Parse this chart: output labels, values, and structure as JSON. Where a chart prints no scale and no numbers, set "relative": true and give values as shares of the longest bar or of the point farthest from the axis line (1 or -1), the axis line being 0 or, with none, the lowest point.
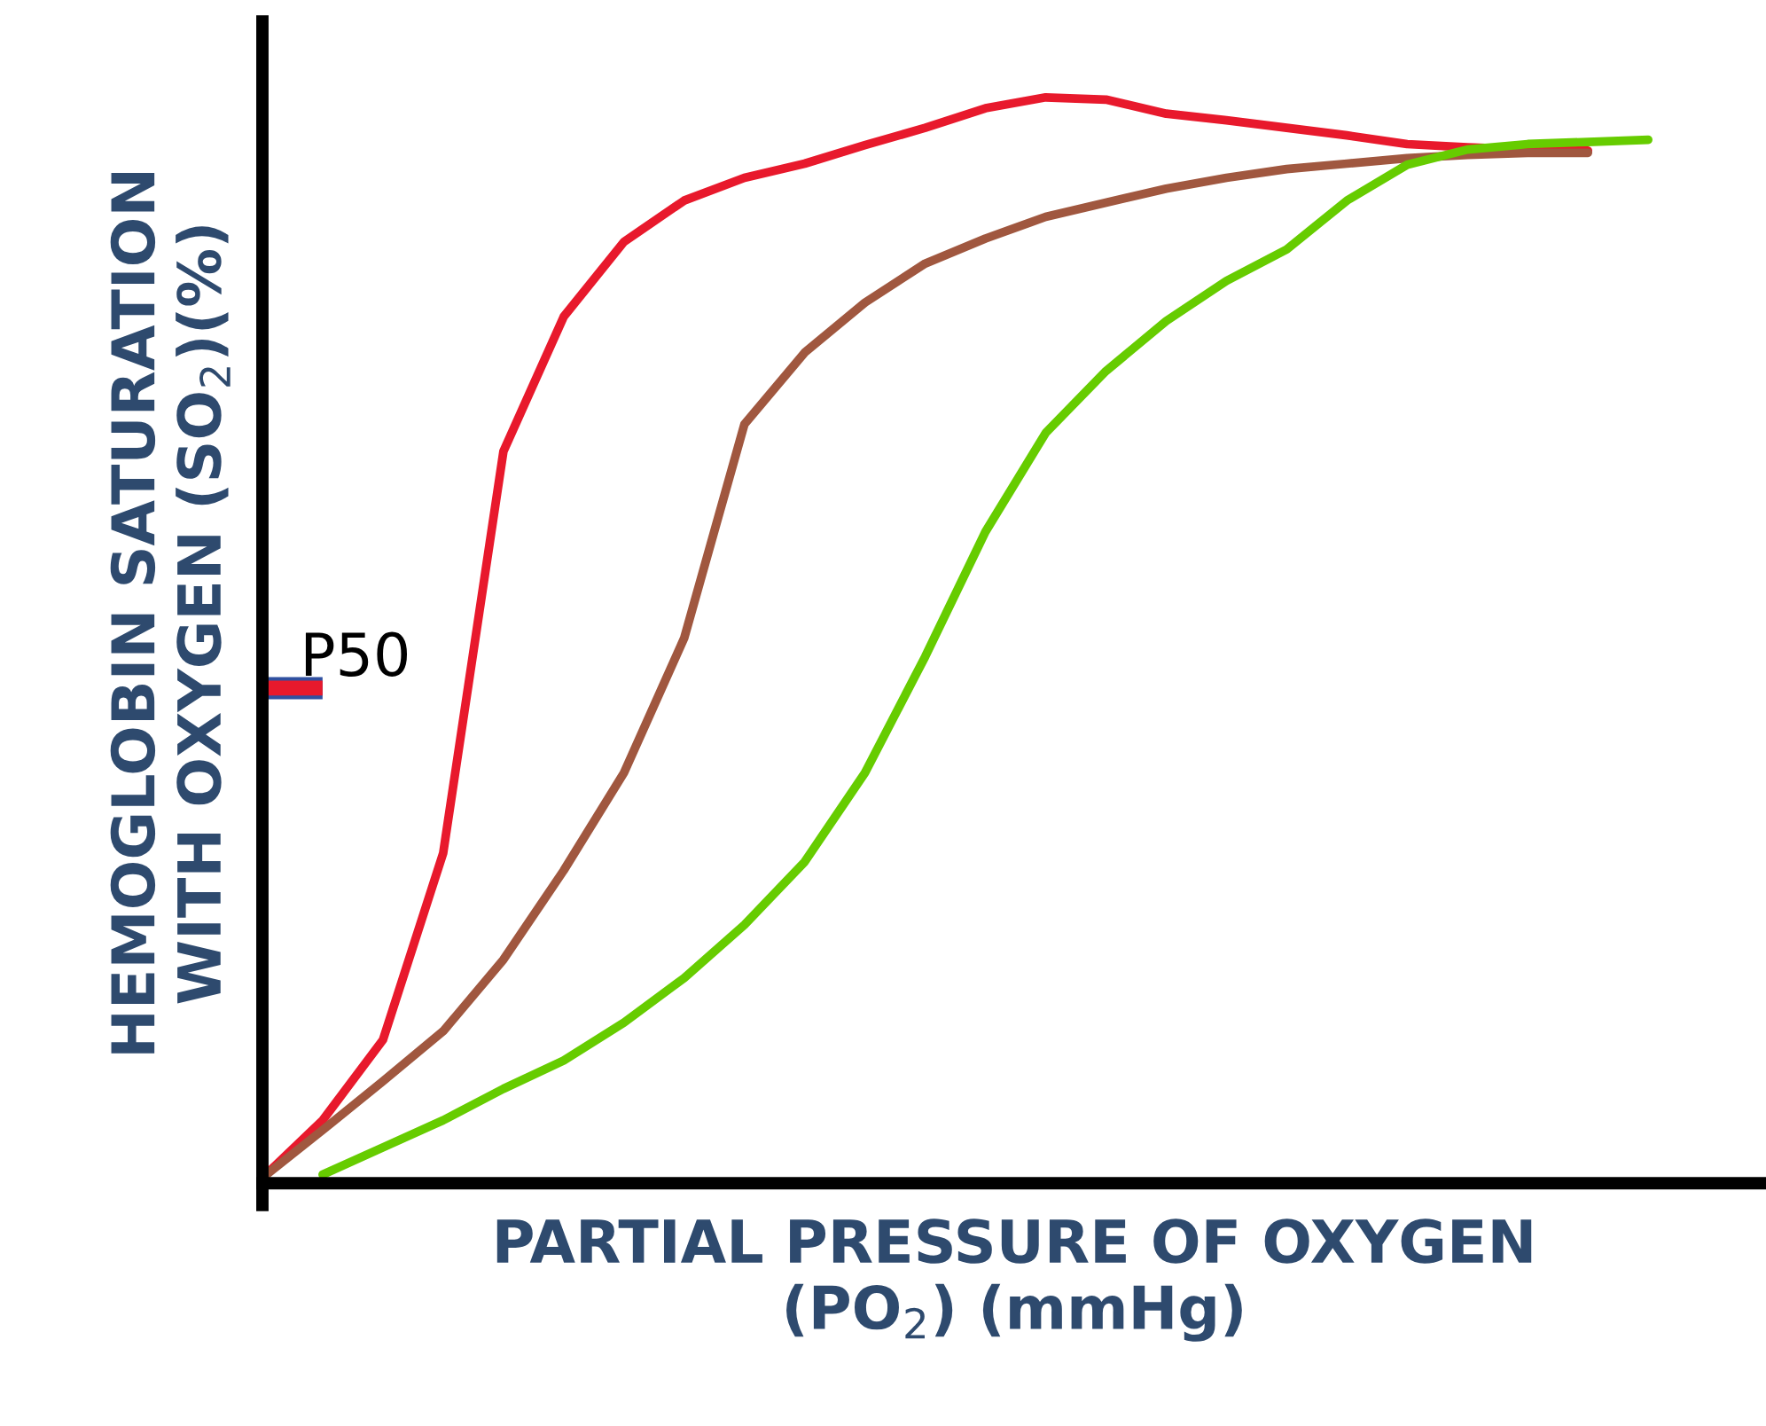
{
  "chart_data": {
    "type": "line",
    "relative": true,
    "xlabel": "PARTIAL PRESSURE OF OXYGEN\n(PO$_{2}$) (mmHg)",
    "ylabel": "HEMOGLOBIN SATURATION\nWITH OXYGEN (SO$_{2}$)(%)",
    "categories": [
      null,
      null,
      null,
      null,
      null,
      null,
      null,
      null,
      null,
      null,
      null,
      null,
      null,
      null,
      null,
      null,
      null,
      null,
      null,
      null,
      null,
      null,
      null,
      null
    ],
    "tick_labels": false,
    "marker": "none",
    "line_style": "solid",
    "ref_lines": [
      {
        "axis": "y",
        "value": 0.456,
        "label": "P50",
        "color": "#e8192c"
      }
    ],
    "series": [
      {
        "color": "#e8192c",
        "values": [
          0.005,
          0.058,
          0.132,
          0.304,
          0.674,
          0.798,
          0.867,
          0.905,
          0.926,
          0.939,
          0.956,
          0.972,
          0.99,
          1.0,
          0.998,
          0.985,
          0.979,
          0.972,
          0.965,
          0.957,
          0.954,
          0.952,
          0.951,
          null
        ]
      },
      {
        "color": "#a0573f",
        "values": [
          0.005,
          0.049,
          0.094,
          0.14,
          0.206,
          0.288,
          0.378,
          0.502,
          0.699,
          0.765,
          0.811,
          0.847,
          0.87,
          0.89,
          0.903,
          0.916,
          0.926,
          0.934,
          0.939,
          0.944,
          0.947,
          0.949,
          0.949,
          null
        ]
      },
      {
        "color": "#66cc00",
        "values": [
          null,
          0.008,
          0.033,
          0.058,
          0.087,
          0.113,
          0.148,
          0.189,
          0.238,
          0.296,
          0.378,
          0.485,
          0.6,
          0.691,
          0.748,
          0.794,
          0.831,
          0.86,
          0.905,
          0.938,
          0.952,
          0.957,
          0.959,
          0.961
        ]
      }
    ]
  }
}
